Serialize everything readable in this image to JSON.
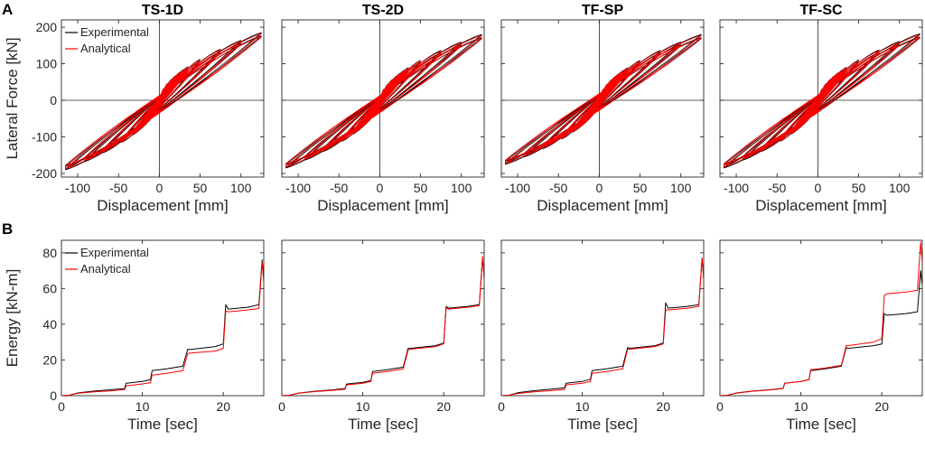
{
  "figure": {
    "panel_a_letter": "A",
    "panel_b_letter": "B"
  },
  "chart_data": [
    {
      "type": "line",
      "id": "hys_ts1d",
      "title": "TS-1D",
      "xlabel": "Displacement [mm]",
      "ylabel": "Lateral Force [kN]",
      "xlim": [
        -120,
        128
      ],
      "ylim": [
        -210,
        220
      ],
      "xticks": [
        -100,
        -50,
        0,
        50,
        100
      ],
      "xticklabels": [
        "-100",
        "-50",
        "0",
        "50",
        "100"
      ],
      "yticks": [
        -200,
        -100,
        0,
        100,
        200
      ],
      "yticklabels": [
        "-200",
        "-100",
        "0",
        "100",
        "200"
      ],
      "amplitudes": [
        5,
        10,
        15,
        20,
        25,
        30,
        35,
        50,
        75,
        100,
        125
      ],
      "peak_force_pos": 185,
      "peak_force_neg": -190,
      "legend": [
        "Experimental",
        "Analytical"
      ],
      "legend_position": "top-left",
      "series": [
        {
          "name": "Experimental",
          "color": "#000000"
        },
        {
          "name": "Analytical",
          "color": "#ff0000"
        }
      ]
    },
    {
      "type": "line",
      "id": "hys_ts2d",
      "title": "TS-2D",
      "xlabel": "Displacement [mm]",
      "ylabel": "",
      "xlim": [
        -120,
        128
      ],
      "ylim": [
        -210,
        220
      ],
      "xticks": [
        -100,
        -50,
        0,
        50,
        100
      ],
      "xticklabels": [
        "-100",
        "-50",
        "0",
        "50",
        "100"
      ],
      "yticks": [
        -200,
        -100,
        0,
        100,
        200
      ],
      "yticklabels": [],
      "amplitudes": [
        5,
        10,
        15,
        20,
        25,
        30,
        35,
        50,
        75,
        100,
        125
      ],
      "peak_force_pos": 180,
      "peak_force_neg": -185,
      "series": [
        {
          "name": "Experimental",
          "color": "#000000"
        },
        {
          "name": "Analytical",
          "color": "#ff0000"
        }
      ]
    },
    {
      "type": "line",
      "id": "hys_tfsp",
      "title": "TF-SP",
      "xlabel": "Displacement [mm]",
      "ylabel": "",
      "xlim": [
        -120,
        128
      ],
      "ylim": [
        -210,
        220
      ],
      "xticks": [
        -100,
        -50,
        0,
        50,
        100
      ],
      "xticklabels": [
        "-100",
        "-50",
        "0",
        "50",
        "100"
      ],
      "yticks": [
        -200,
        -100,
        0,
        100,
        200
      ],
      "yticklabels": [],
      "amplitudes": [
        5,
        10,
        15,
        20,
        25,
        30,
        35,
        50,
        75,
        100,
        125
      ],
      "peak_force_pos": 180,
      "peak_force_neg": -175,
      "series": [
        {
          "name": "Experimental",
          "color": "#000000"
        },
        {
          "name": "Analytical",
          "color": "#ff0000"
        }
      ]
    },
    {
      "type": "line",
      "id": "hys_tfsc",
      "title": "TF-SC",
      "xlabel": "Displacement [mm]",
      "ylabel": "",
      "xlim": [
        -120,
        128
      ],
      "ylim": [
        -210,
        220
      ],
      "xticks": [
        -100,
        -50,
        0,
        50,
        100
      ],
      "xticklabels": [
        "-100",
        "-50",
        "0",
        "50",
        "100"
      ],
      "yticks": [
        -200,
        -100,
        0,
        100,
        200
      ],
      "yticklabels": [],
      "amplitudes": [
        5,
        10,
        15,
        20,
        25,
        30,
        35,
        50,
        75,
        100,
        125
      ],
      "peak_force_pos": 182,
      "peak_force_neg": -185,
      "series": [
        {
          "name": "Experimental",
          "color": "#000000"
        },
        {
          "name": "Analytical",
          "color": "#ff0000"
        }
      ]
    },
    {
      "type": "line",
      "id": "energy_ts1d",
      "title": "",
      "xlabel": "Time [sec]",
      "ylabel": "Energy [kN-m]",
      "xlim": [
        0,
        25
      ],
      "ylim": [
        0,
        87
      ],
      "xticks": [
        0,
        10,
        20
      ],
      "xticklabels": [
        "0",
        "10",
        "20"
      ],
      "yticks": [
        0,
        20,
        40,
        60,
        80
      ],
      "yticklabels": [
        "0",
        "20",
        "40",
        "60",
        "80"
      ],
      "legend": [
        "Experimental",
        "Analytical"
      ],
      "legend_position": "top-left",
      "series": [
        {
          "name": "Experimental",
          "color": "#000000",
          "x": [
            0,
            1,
            2,
            4,
            6,
            7.8,
            8,
            10,
            11,
            11.2,
            13,
            15,
            15.6,
            15.8,
            19,
            20,
            20.3,
            20.6,
            23,
            24.4,
            24.8,
            25
          ],
          "y": [
            0,
            0.3,
            1.5,
            2.6,
            3.3,
            4.0,
            7,
            8,
            9,
            14,
            15,
            16.5,
            26,
            25.8,
            27.5,
            29,
            51,
            48.5,
            49.5,
            51,
            76,
            66
          ]
        },
        {
          "name": "Analytical",
          "color": "#ff0000",
          "x": [
            0,
            1,
            2,
            4,
            6,
            7.8,
            8,
            10,
            11,
            11.2,
            13,
            15,
            15.6,
            15.8,
            19,
            20,
            20.3,
            20.6,
            23,
            24.4,
            24.8,
            25
          ],
          "y": [
            0,
            0.3,
            1.3,
            2.2,
            2.7,
            3.4,
            5.5,
            6.6,
            7.3,
            11.5,
            12.5,
            14,
            23.5,
            23.8,
            25,
            26.5,
            47.5,
            47,
            48,
            48.8,
            75,
            63
          ]
        }
      ]
    },
    {
      "type": "line",
      "id": "energy_ts2d",
      "title": "",
      "xlabel": "Time [sec]",
      "ylabel": "",
      "xlim": [
        0,
        25
      ],
      "ylim": [
        0,
        87
      ],
      "xticks": [
        0,
        10,
        20
      ],
      "xticklabels": [
        "0",
        "10",
        "20"
      ],
      "yticks": [
        0,
        20,
        40,
        60,
        80
      ],
      "yticklabels": [],
      "series": [
        {
          "name": "Experimental",
          "color": "#000000",
          "x": [
            0,
            1,
            2,
            4,
            6,
            7.8,
            8,
            10,
            11,
            11.2,
            13,
            15,
            15.6,
            15.8,
            19,
            20,
            20.3,
            20.6,
            23,
            24.4,
            24.8,
            25
          ],
          "y": [
            0,
            0.3,
            1.4,
            2.5,
            3.2,
            4.0,
            6.5,
            7.5,
            8.5,
            13.5,
            14.5,
            16,
            26.5,
            26.5,
            28,
            29.5,
            50,
            49,
            50,
            51,
            77,
            66
          ]
        },
        {
          "name": "Analytical",
          "color": "#ff0000",
          "x": [
            0,
            1,
            2,
            4,
            6,
            7.8,
            8,
            10,
            11,
            11.2,
            13,
            15,
            15.6,
            15.8,
            19,
            20,
            20.3,
            20.6,
            23,
            24.4,
            24.8,
            25
          ],
          "y": [
            0,
            0.3,
            1.3,
            2.3,
            2.9,
            3.6,
            6,
            7,
            8,
            12.5,
            13.5,
            15,
            25.5,
            26,
            27.5,
            29,
            49,
            48.5,
            49.5,
            50.5,
            78,
            65
          ]
        }
      ]
    },
    {
      "type": "line",
      "id": "energy_tfsp",
      "title": "",
      "xlabel": "Time [sec]",
      "ylabel": "",
      "xlim": [
        0,
        25
      ],
      "ylim": [
        0,
        87
      ],
      "xticks": [
        0,
        10,
        20
      ],
      "xticklabels": [
        "0",
        "10",
        "20"
      ],
      "yticks": [
        0,
        20,
        40,
        60,
        80
      ],
      "yticklabels": [],
      "series": [
        {
          "name": "Experimental",
          "color": "#000000",
          "x": [
            0,
            1,
            2,
            4,
            6,
            7.8,
            8,
            10,
            11,
            11.2,
            13,
            15,
            15.6,
            15.8,
            19,
            20,
            20.3,
            20.6,
            23,
            24.4,
            24.8,
            25
          ],
          "y": [
            0,
            0.3,
            1.6,
            2.8,
            3.6,
            4.4,
            7,
            8,
            9.2,
            14,
            15,
            16.5,
            27,
            26.5,
            28,
            29.5,
            52,
            49,
            50,
            51,
            77,
            65
          ]
        },
        {
          "name": "Analytical",
          "color": "#ff0000",
          "x": [
            0,
            1,
            2,
            4,
            6,
            7.8,
            8,
            10,
            11,
            11.2,
            13,
            15,
            15.6,
            15.8,
            19,
            20,
            20.3,
            20.6,
            23,
            24.4,
            24.8,
            25
          ],
          "y": [
            0,
            0.3,
            1.2,
            2.2,
            2.8,
            3.5,
            6,
            7,
            8,
            12.5,
            13.5,
            15,
            26,
            26,
            27.5,
            29,
            48,
            48,
            49,
            50,
            77,
            65
          ]
        }
      ]
    },
    {
      "type": "line",
      "id": "energy_tfsc",
      "title": "",
      "xlabel": "Time [sec]",
      "ylabel": "",
      "xlim": [
        0,
        25
      ],
      "ylim": [
        0,
        87
      ],
      "xticks": [
        0,
        10,
        20
      ],
      "xticklabels": [
        "0",
        "10",
        "20"
      ],
      "yticks": [
        0,
        20,
        40,
        60,
        80
      ],
      "yticklabels": [],
      "series": [
        {
          "name": "Experimental",
          "color": "#000000",
          "x": [
            0,
            1,
            2,
            4,
            6,
            7.8,
            8,
            10,
            11,
            11.2,
            13,
            15,
            15.6,
            15.8,
            19,
            20,
            20.3,
            20.6,
            23,
            24.4,
            24.8,
            25
          ],
          "y": [
            0,
            0.3,
            1.5,
            2.6,
            3.3,
            4.1,
            7,
            8,
            9,
            14,
            15,
            16.5,
            27,
            26.5,
            28,
            29,
            46,
            45,
            46,
            47,
            70,
            62
          ]
        },
        {
          "name": "Analytical",
          "color": "#ff0000",
          "x": [
            0,
            1,
            2,
            4,
            6,
            7.8,
            8,
            10,
            11,
            11.2,
            13,
            15,
            15.6,
            15.8,
            19,
            20,
            20.3,
            20.6,
            23,
            24.4,
            24.8,
            25
          ],
          "y": [
            0,
            0.3,
            1.4,
            2.5,
            3.2,
            4.0,
            7,
            8,
            9,
            14.5,
            15.5,
            17,
            28,
            28,
            30,
            32,
            56,
            57,
            58,
            59,
            86,
            74
          ]
        }
      ]
    }
  ]
}
